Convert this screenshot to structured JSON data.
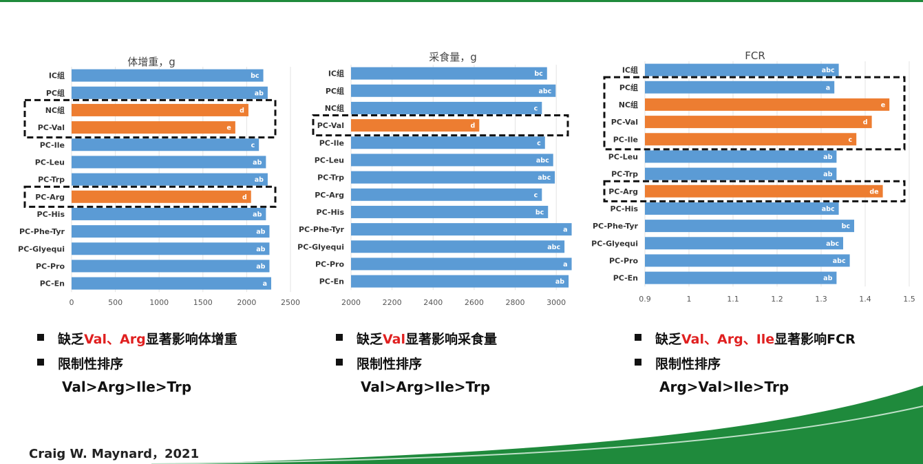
{
  "chart_data": [
    {
      "type": "bar",
      "orientation": "horizontal",
      "title": "体增重，g",
      "categories": [
        "IC组",
        "PC组",
        "NC组",
        "PC-Val",
        "PC-Ile",
        "PC-Leu",
        "PC-Trp",
        "PC-Arg",
        "PC-His",
        "PC-Phe-Tyr",
        "PC-Glyequi",
        "PC-Pro",
        "PC-En"
      ],
      "values": [
        2190,
        2240,
        2020,
        1870,
        2140,
        2220,
        2240,
        2050,
        2220,
        2260,
        2260,
        2260,
        2280
      ],
      "labels": [
        "bc",
        "ab",
        "d",
        "e",
        "c",
        "ab",
        "ab",
        "d",
        "ab",
        "ab",
        "ab",
        "ab",
        "a"
      ],
      "highlight": [
        false,
        false,
        true,
        true,
        false,
        false,
        false,
        true,
        false,
        false,
        false,
        false,
        false
      ],
      "xlim": [
        0,
        2500
      ],
      "xticks": [
        0,
        500,
        1000,
        1500,
        2000,
        2500
      ],
      "boxes": [
        [
          2,
          3
        ],
        [
          7,
          7
        ]
      ],
      "colors": {
        "normal": "#5b9bd5",
        "highlight": "#ed7d31"
      }
    },
    {
      "type": "bar",
      "orientation": "horizontal",
      "title": "采食量，g",
      "categories": [
        "IC组",
        "PC组",
        "NC组",
        "PC-Val",
        "PC-Ile",
        "PC-Leu",
        "PC-Trp",
        "PC-Arg",
        "PC-His",
        "PC-Phe-Tyr",
        "PC-Glyequi",
        "PC-Pro",
        "PC-En"
      ],
      "values": [
        2955,
        2997,
        2930,
        2625,
        2945,
        2985,
        2993,
        2930,
        2960,
        3075,
        3040,
        3075,
        3060
      ],
      "labels": [
        "bc",
        "abc",
        "c",
        "d",
        "c",
        "abc",
        "abc",
        "c",
        "bc",
        "a",
        "abc",
        "a",
        "ab"
      ],
      "highlight": [
        false,
        false,
        false,
        true,
        false,
        false,
        false,
        false,
        false,
        false,
        false,
        false,
        false
      ],
      "xlim": [
        2000,
        3100
      ],
      "xticks": [
        2000,
        2200,
        2400,
        2600,
        2800,
        3000
      ],
      "boxes": [
        [
          3,
          3
        ]
      ],
      "colors": {
        "normal": "#5b9bd5",
        "highlight": "#ed7d31"
      }
    },
    {
      "type": "bar",
      "orientation": "horizontal",
      "title": "FCR",
      "categories": [
        "IC组",
        "PC组",
        "NC组",
        "PC-Val",
        "PC-Ile",
        "PC-Leu",
        "PC-Trp",
        "PC-Arg",
        "PC-His",
        "PC-Phe-Tyr",
        "PC-Glyequi",
        "PC-Pro",
        "PC-En"
      ],
      "values": [
        1.34,
        1.33,
        1.455,
        1.415,
        1.38,
        1.335,
        1.335,
        1.44,
        1.34,
        1.375,
        1.35,
        1.365,
        1.335
      ],
      "labels": [
        "abc",
        "a",
        "e",
        "d",
        "c",
        "ab",
        "ab",
        "de",
        "abc",
        "bc",
        "abc",
        "abc",
        "ab"
      ],
      "highlight": [
        false,
        false,
        true,
        true,
        true,
        false,
        false,
        true,
        false,
        false,
        false,
        false,
        false
      ],
      "xlim": [
        0.9,
        1.5
      ],
      "xticks": [
        0.9,
        1,
        1.1,
        1.2,
        1.3,
        1.4,
        1.5
      ],
      "boxes": [
        [
          1,
          4
        ],
        [
          7,
          7
        ]
      ],
      "colors": {
        "normal": "#5b9bd5",
        "highlight": "#ed7d31"
      }
    }
  ],
  "panels": [
    {
      "bullet1": {
        "pre": "缺乏",
        "red": "Val、Arg",
        "post": "显著影响体增重"
      },
      "bullet2": "限制性排序",
      "ranking": "Val>Arg>Ile>Trp"
    },
    {
      "bullet1": {
        "pre": "缺乏",
        "red": "Val",
        "post": "显著影响采食量"
      },
      "bullet2": "限制性排序",
      "ranking": "Val>Arg>Ile>Trp"
    },
    {
      "bullet1": {
        "pre": "缺乏",
        "red": "Val、Arg、Ile",
        "post": "显著影响FCR"
      },
      "bullet2": "限制性排序",
      "ranking": "Arg>Val>Ile>Trp"
    }
  ],
  "citation": "Craig W. Maynard，2021"
}
